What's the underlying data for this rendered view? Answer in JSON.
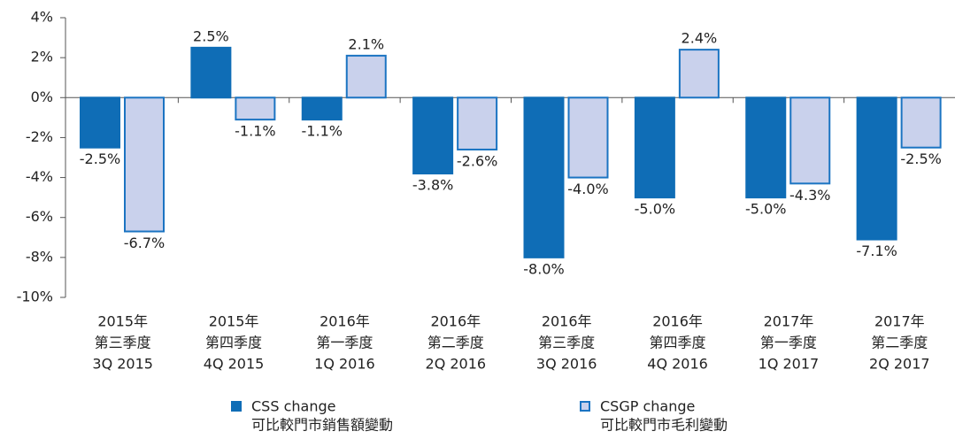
{
  "chart_data": {
    "type": "bar",
    "categories": [
      [
        "2015年",
        "第三季度",
        "3Q 2015"
      ],
      [
        "2015年",
        "第四季度",
        "4Q 2015"
      ],
      [
        "2016年",
        "第一季度",
        "1Q 2016"
      ],
      [
        "2016年",
        "第二季度",
        "2Q 2016"
      ],
      [
        "2016年",
        "第三季度",
        "3Q 2016"
      ],
      [
        "2016年",
        "第四季度",
        "4Q 2016"
      ],
      [
        "2017年",
        "第一季度",
        "1Q 2017"
      ],
      [
        "2017年",
        "第二季度",
        "2Q 2017"
      ]
    ],
    "series": [
      {
        "name": [
          "CSS change",
          "可比較門市銷售額變動"
        ],
        "color": "#0f6db6",
        "border": "#0f6db6",
        "values": [
          -2.5,
          2.5,
          -1.1,
          -3.8,
          -8.0,
          -5.0,
          -5.0,
          -7.1
        ],
        "value_labels": [
          "-2.5%",
          "2.5%",
          "-1.1%",
          "-3.8%",
          "-8.0%",
          "-5.0%",
          "-5.0%",
          "-7.1%"
        ]
      },
      {
        "name": [
          "CSGP change",
          "可比較門市毛利變動"
        ],
        "color": "#c9d1ec",
        "border": "#1b74c2",
        "values": [
          -6.7,
          -1.1,
          2.1,
          -2.6,
          -4.0,
          2.4,
          -4.3,
          -2.5
        ],
        "value_labels": [
          "-6.7%",
          "-1.1%",
          "2.1%",
          "-2.6%",
          "-4.0%",
          "2.4%",
          "-4.3%",
          "-2.5%"
        ]
      }
    ],
    "ylim": [
      -10,
      4
    ],
    "yticks": [
      {
        "value": -10,
        "label": "-10%"
      },
      {
        "value": -8,
        "label": "-8%"
      },
      {
        "value": -6,
        "label": "-6%"
      },
      {
        "value": -4,
        "label": "-4%"
      },
      {
        "value": -2,
        "label": "-2%"
      },
      {
        "value": 0,
        "label": "0%"
      },
      {
        "value": 2,
        "label": "2%"
      },
      {
        "value": 4,
        "label": "4%"
      }
    ],
    "legend": "bottom"
  }
}
